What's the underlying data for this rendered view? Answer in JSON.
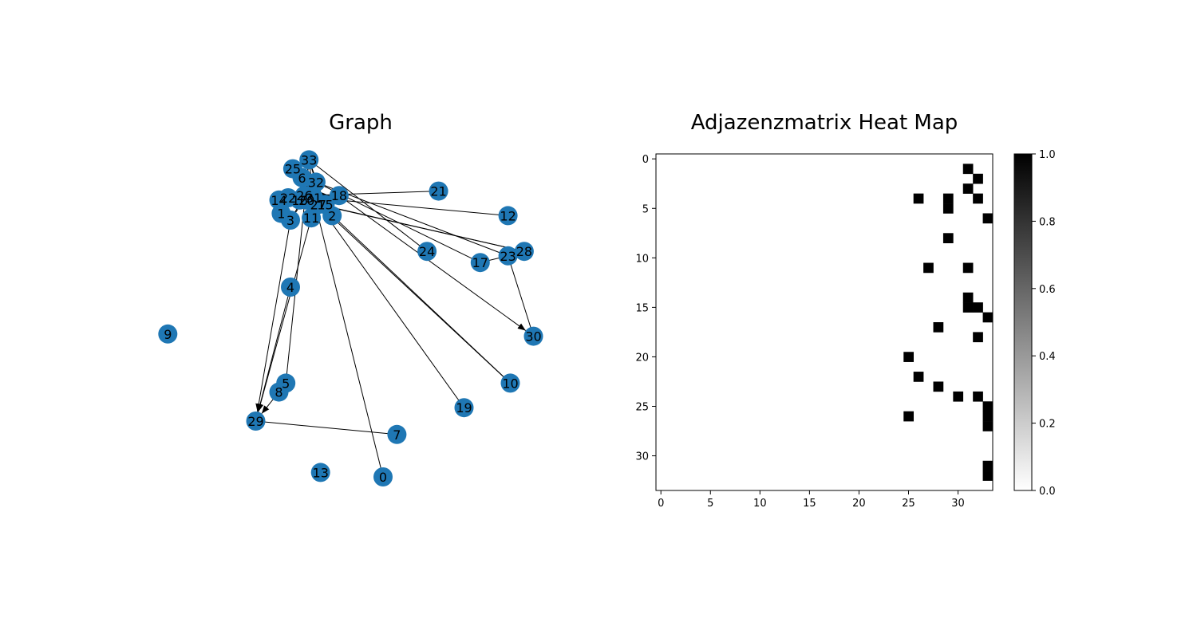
{
  "chart_data": [
    {
      "type": "network",
      "title": "Graph",
      "node_color": "#1f77b4",
      "edge_color": "#000000",
      "nodes": [
        {
          "id": "0",
          "pos": [
            0.0,
            -1.1
          ]
        },
        {
          "id": "1",
          "pos": [
            -0.44,
            0.08
          ]
        },
        {
          "id": "2",
          "pos": [
            -0.22,
            0.07
          ]
        },
        {
          "id": "3",
          "pos": [
            -0.4,
            0.05
          ]
        },
        {
          "id": "4",
          "pos": [
            -0.4,
            -0.25
          ]
        },
        {
          "id": "5",
          "pos": [
            -0.42,
            -0.68
          ]
        },
        {
          "id": "6",
          "pos": [
            -0.35,
            0.24
          ]
        },
        {
          "id": "7",
          "pos": [
            0.06,
            -0.91
          ]
        },
        {
          "id": "8",
          "pos": [
            -0.45,
            -0.72
          ]
        },
        {
          "id": "9",
          "pos": [
            -0.93,
            -0.46
          ]
        },
        {
          "id": "10",
          "pos": [
            0.55,
            -0.68
          ]
        },
        {
          "id": "11",
          "pos": [
            -0.31,
            0.06
          ]
        },
        {
          "id": "12",
          "pos": [
            0.54,
            0.07
          ]
        },
        {
          "id": "13",
          "pos": [
            -0.27,
            -1.08
          ]
        },
        {
          "id": "14",
          "pos": [
            -0.45,
            0.14
          ]
        },
        {
          "id": "15",
          "pos": [
            -0.25,
            0.12
          ]
        },
        {
          "id": "16",
          "pos": [
            -0.36,
            0.14
          ]
        },
        {
          "id": "17",
          "pos": [
            0.42,
            -0.14
          ]
        },
        {
          "id": "18",
          "pos": [
            -0.19,
            0.16
          ]
        },
        {
          "id": "19",
          "pos": [
            0.35,
            -0.79
          ]
        },
        {
          "id": "20",
          "pos": [
            -0.33,
            0.14
          ]
        },
        {
          "id": "21",
          "pos": [
            0.24,
            0.18
          ]
        },
        {
          "id": "22",
          "pos": [
            -0.41,
            0.15
          ]
        },
        {
          "id": "23",
          "pos": [
            0.54,
            -0.11
          ]
        },
        {
          "id": "24",
          "pos": [
            0.19,
            -0.09
          ]
        },
        {
          "id": "25",
          "pos": [
            -0.39,
            0.28
          ]
        },
        {
          "id": "26",
          "pos": [
            -0.34,
            0.16
          ]
        },
        {
          "id": "27",
          "pos": [
            -0.28,
            0.12
          ]
        },
        {
          "id": "28",
          "pos": [
            0.61,
            -0.09
          ]
        },
        {
          "id": "29",
          "pos": [
            -0.55,
            -0.85
          ]
        },
        {
          "id": "30",
          "pos": [
            0.65,
            -0.47
          ]
        },
        {
          "id": "31",
          "pos": [
            -0.3,
            0.15
          ]
        },
        {
          "id": "32",
          "pos": [
            -0.29,
            0.22
          ]
        },
        {
          "id": "33",
          "pos": [
            -0.32,
            0.32
          ]
        }
      ],
      "edges": [
        {
          "source": "0",
          "target": "31",
          "arrow": false
        },
        {
          "source": "1",
          "target": "32",
          "arrow": false
        },
        {
          "source": "2",
          "target": "31",
          "arrow": false
        },
        {
          "source": "3",
          "target": "26",
          "arrow": false
        },
        {
          "source": "3",
          "target": "29",
          "arrow": true
        },
        {
          "source": "3",
          "target": "32",
          "arrow": false
        },
        {
          "source": "4",
          "target": "29",
          "arrow": false
        },
        {
          "source": "5",
          "target": "33",
          "arrow": false
        },
        {
          "source": "7",
          "target": "29",
          "arrow": false
        },
        {
          "source": "10",
          "target": "27",
          "arrow": false
        },
        {
          "source": "10",
          "target": "31",
          "arrow": false
        },
        {
          "source": "11",
          "target": "29",
          "arrow": true
        },
        {
          "source": "12",
          "target": "31",
          "arrow": false
        },
        {
          "source": "14",
          "target": "31",
          "arrow": false
        },
        {
          "source": "14",
          "target": "32",
          "arrow": false
        },
        {
          "source": "15",
          "target": "33",
          "arrow": false
        },
        {
          "source": "16",
          "target": "28",
          "arrow": false
        },
        {
          "source": "17",
          "target": "23",
          "arrow": false
        },
        {
          "source": "17",
          "target": "32",
          "arrow": false
        },
        {
          "source": "19",
          "target": "25",
          "arrow": false
        },
        {
          "source": "21",
          "target": "26",
          "arrow": false
        },
        {
          "source": "22",
          "target": "28",
          "arrow": false
        },
        {
          "source": "23",
          "target": "30",
          "arrow": false
        },
        {
          "source": "23",
          "target": "32",
          "arrow": false
        },
        {
          "source": "24",
          "target": "33",
          "arrow": false
        },
        {
          "source": "25",
          "target": "33",
          "arrow": false
        },
        {
          "source": "25",
          "target": "25",
          "arrow": false
        },
        {
          "source": "26",
          "target": "33",
          "arrow": false
        },
        {
          "source": "26",
          "target": "18",
          "arrow": true
        },
        {
          "source": "18",
          "target": "30",
          "arrow": true
        },
        {
          "source": "8",
          "target": "29",
          "arrow": true
        },
        {
          "source": "31",
          "target": "33",
          "arrow": false
        },
        {
          "source": "32",
          "target": "33",
          "arrow": false
        }
      ]
    },
    {
      "type": "heatmap",
      "title": "Adjazenzmatrix Heat Map",
      "size": 34,
      "xticks": [
        0,
        5,
        10,
        15,
        20,
        25,
        30
      ],
      "yticks": [
        0,
        5,
        10,
        15,
        20,
        25,
        30
      ],
      "cmap": "Greys",
      "colorbar": {
        "min": 0.0,
        "max": 1.0,
        "ticks": [
          "0.0",
          "0.2",
          "0.4",
          "0.6",
          "0.8",
          "1.0"
        ]
      },
      "ones": [
        [
          1,
          31
        ],
        [
          2,
          32
        ],
        [
          3,
          31
        ],
        [
          4,
          26
        ],
        [
          4,
          29
        ],
        [
          4,
          32
        ],
        [
          5,
          29
        ],
        [
          6,
          33
        ],
        [
          8,
          29
        ],
        [
          11,
          27
        ],
        [
          11,
          31
        ],
        [
          14,
          31
        ],
        [
          15,
          31
        ],
        [
          15,
          32
        ],
        [
          16,
          33
        ],
        [
          17,
          28
        ],
        [
          18,
          32
        ],
        [
          20,
          25
        ],
        [
          22,
          26
        ],
        [
          23,
          28
        ],
        [
          24,
          30
        ],
        [
          24,
          32
        ],
        [
          25,
          33
        ],
        [
          26,
          25
        ],
        [
          26,
          33
        ],
        [
          27,
          33
        ],
        [
          31,
          33
        ],
        [
          32,
          33
        ]
      ]
    }
  ]
}
